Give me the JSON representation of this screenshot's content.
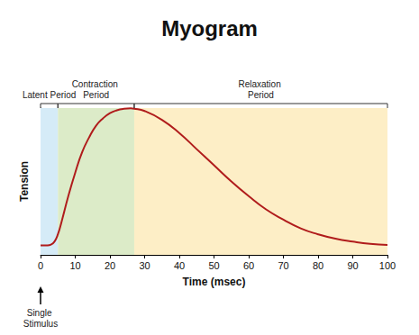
{
  "chart_data": {
    "type": "line",
    "title": "Myogram",
    "x_label": "Time (msec)",
    "y_label": "Tension",
    "x": [
      0,
      2,
      3,
      4,
      5,
      6,
      8,
      10,
      12,
      14,
      16,
      18,
      20,
      22,
      24,
      26,
      27,
      30,
      35,
      40,
      45,
      50,
      55,
      60,
      65,
      70,
      75,
      80,
      85,
      90,
      95,
      100
    ],
    "values": [
      6.5,
      6.5,
      7,
      9,
      14,
      22,
      40,
      56,
      70,
      80,
      88,
      93,
      96.5,
      98.5,
      99.5,
      99.8,
      99.6,
      98,
      92,
      83,
      72,
      61,
      50,
      40,
      31,
      24,
      18,
      14,
      11,
      9,
      7.5,
      6.8
    ],
    "color": "#b01c1c",
    "xlim": [
      0,
      100
    ],
    "xticks": [
      0,
      10,
      20,
      30,
      40,
      50,
      60,
      70,
      80,
      90,
      100
    ],
    "ylim": [
      0,
      100
    ],
    "tick_labels": "x",
    "grid": false,
    "periods": [
      {
        "label": "Latent Period",
        "start": 0,
        "end": 5,
        "color": "#d5ebf7"
      },
      {
        "label": "Contraction Period",
        "start": 5,
        "end": 27,
        "color": "#dcebc8"
      },
      {
        "label": "Relaxation Period",
        "start": 27,
        "end": 100,
        "color": "#fdeec6"
      }
    ],
    "annotations": [
      {
        "text": "Single Stimulus",
        "x": 0
      }
    ]
  }
}
